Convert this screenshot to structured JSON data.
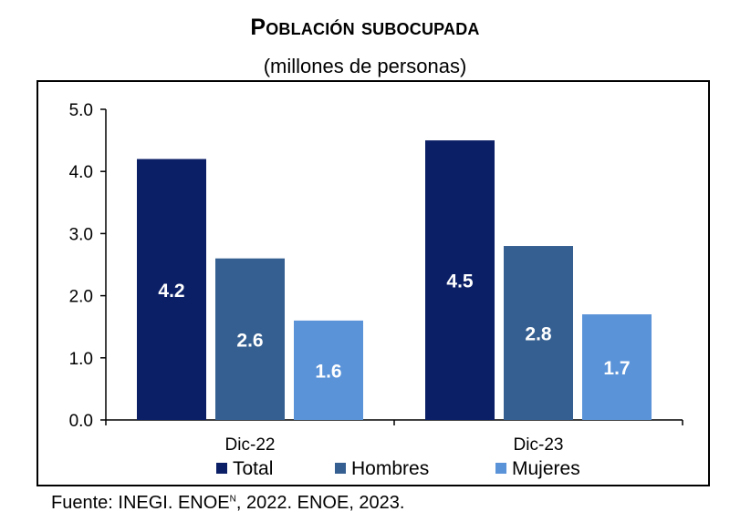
{
  "source": {
    "label": "Fuente:",
    "org": "INEGI.",
    "survey1": "ENOE",
    "survey1_sup": "N",
    "year1": ", 2022.",
    "survey2": "ENOE",
    "year2": ", 2023."
  },
  "colors": {
    "total": "#0b1f66",
    "hombres": "#355f91",
    "mujeres": "#5b93d8"
  },
  "chart_data": {
    "type": "bar",
    "title": "Población subocupada",
    "subtitle": "(millones de personas)",
    "xlabel": "",
    "ylabel": "",
    "categories": [
      "Dic-22",
      "Dic-23"
    ],
    "series": [
      {
        "name": "Total",
        "values": [
          4.2,
          4.5
        ],
        "labels": [
          "4.2",
          "4.5"
        ]
      },
      {
        "name": "Hombres",
        "values": [
          2.6,
          2.8
        ],
        "labels": [
          "2.6",
          "2.8"
        ]
      },
      {
        "name": "Mujeres",
        "values": [
          1.6,
          1.7
        ],
        "labels": [
          "1.6",
          "1.7"
        ]
      }
    ],
    "ylim": [
      0,
      5
    ],
    "yticks": [
      "0.0",
      "1.0",
      "2.0",
      "3.0",
      "4.0",
      "5.0"
    ],
    "grid": false,
    "legend": "bottom"
  }
}
